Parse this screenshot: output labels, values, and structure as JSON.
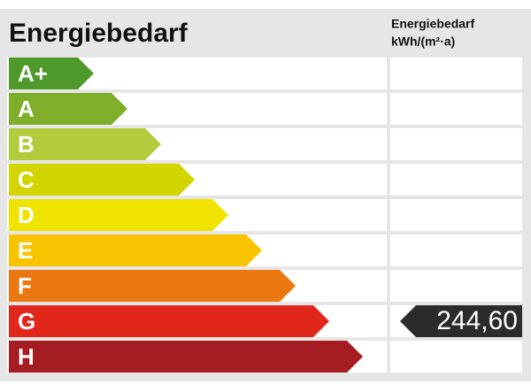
{
  "title": "Energiebedarf",
  "column_header": {
    "line1": "Energiebedarf",
    "line2": "kWh/(m²·a)"
  },
  "classes": [
    {
      "label": "A+"
    },
    {
      "label": "A"
    },
    {
      "label": "B"
    },
    {
      "label": "C"
    },
    {
      "label": "D"
    },
    {
      "label": "E"
    },
    {
      "label": "F"
    },
    {
      "label": "G",
      "value": "244,60"
    },
    {
      "label": "H"
    }
  ]
}
